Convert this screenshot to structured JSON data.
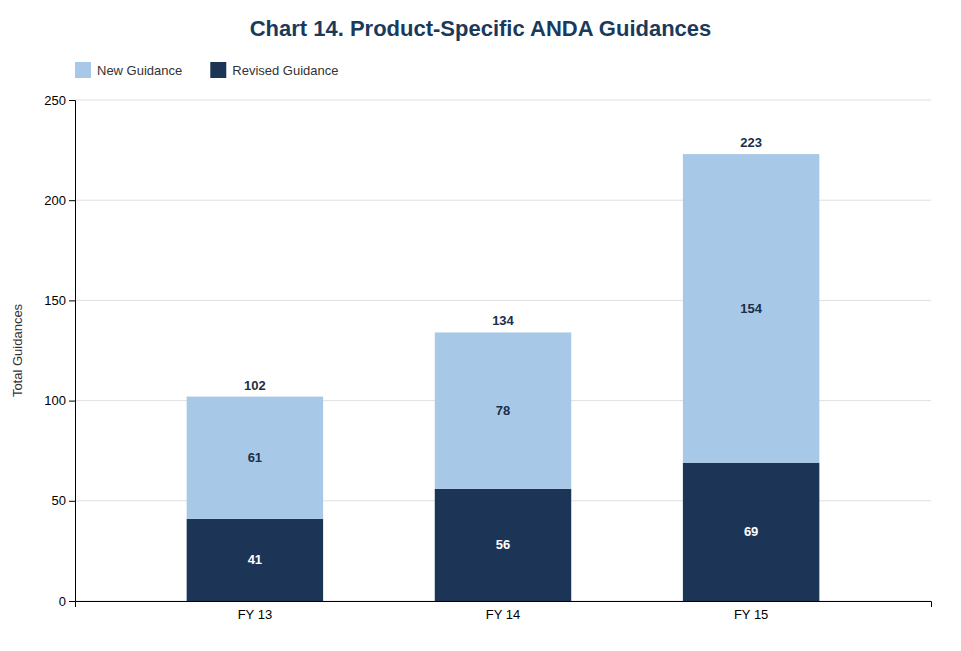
{
  "chart_data": {
    "type": "bar",
    "stacked": true,
    "title": "Chart 14.  Product-Specific ANDA Guidances",
    "ylabel": "Total Guidances",
    "categories": [
      "FY 13",
      "FY 14",
      "FY 15"
    ],
    "series": [
      {
        "name": "Revised Guidance",
        "color": "#1c3557",
        "values": [
          41,
          56,
          69
        ]
      },
      {
        "name": "New Guidance",
        "color": "#a8c8e8",
        "values": [
          61,
          78,
          154
        ]
      }
    ],
    "totals": [
      102,
      134,
      223
    ],
    "ylim": [
      0,
      250
    ],
    "yticks": [
      0,
      50,
      100,
      150,
      200,
      250
    ],
    "grid": true,
    "legend": "upper left",
    "data_labels": true
  }
}
